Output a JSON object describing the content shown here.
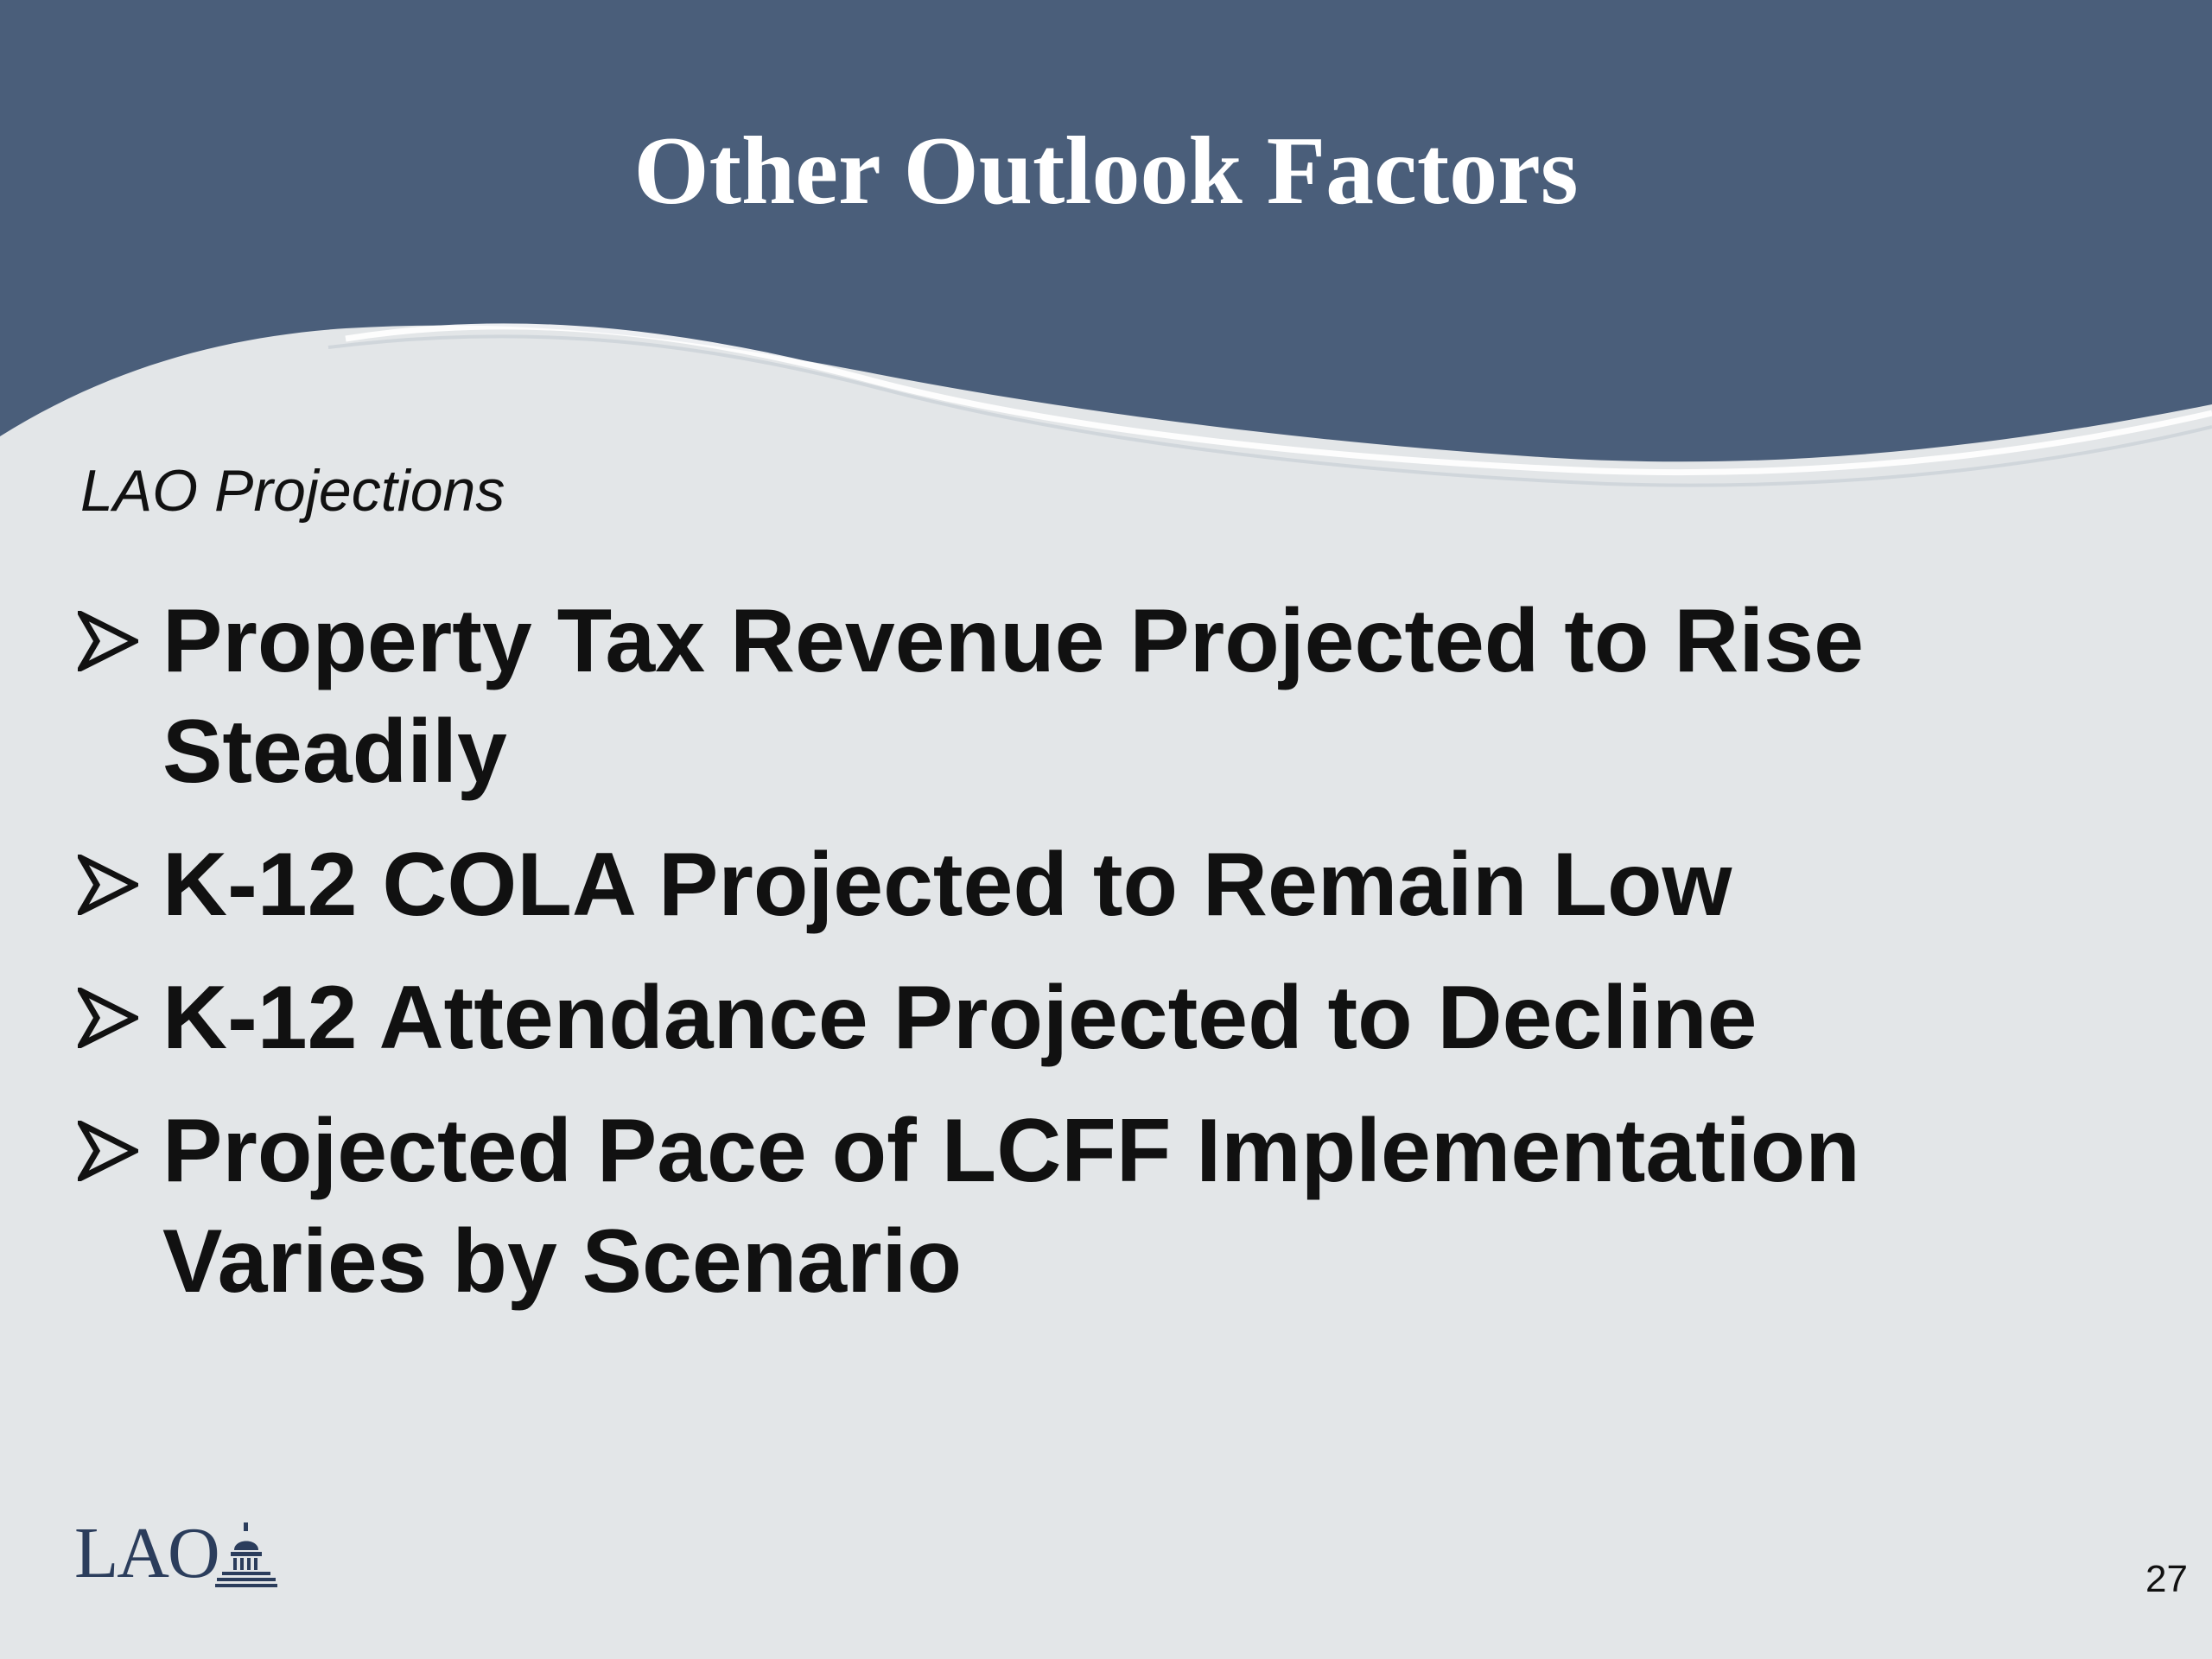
{
  "slide": {
    "title": "Other Outlook Factors",
    "subtitle": "LAO Projections",
    "bullets": [
      "Property Tax Revenue Projected to Rise Steadily",
      "K-12 COLA Projected to Remain Low",
      "K-12 Attendance Projected to Decline",
      "Projected Pace of LCFF Implementation Varies by Scenario"
    ],
    "page_number": "27"
  },
  "logo": {
    "text": "LAO",
    "icon": "capitol-dome-icon"
  },
  "colors": {
    "header_band": "#4a5e7a",
    "background": "#e3e6e8",
    "text": "#111111",
    "logo": "#2b3d5c"
  }
}
